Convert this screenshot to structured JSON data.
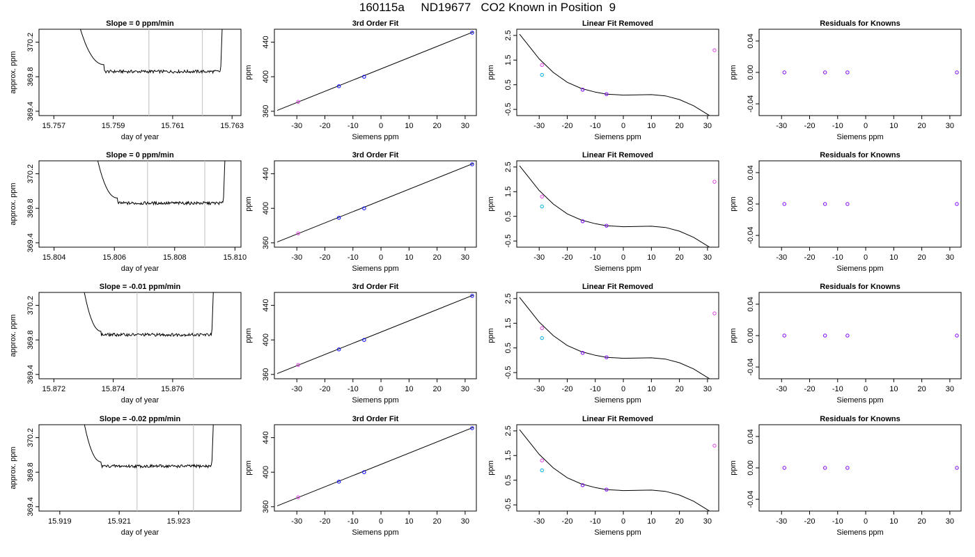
{
  "page": {
    "title": "160115a     ND19677   CO2 Known in Position  9"
  },
  "colors": {
    "trace": "#000000",
    "window_line": "#c8c8c8",
    "point_blue": "#0000ff",
    "point_magenta": "#e040e0",
    "point_cyan": "#00b0e0",
    "point_purple": "#8000ff"
  },
  "chart_data": [
    {
      "type": "line",
      "panel": "trace",
      "row": 0,
      "title": "Slope =  0  ppm/min",
      "xlabel": "day of year",
      "ylabel": "approx. ppm",
      "xlim": [
        15.7565,
        15.7633
      ],
      "ylim": [
        369.35,
        370.35
      ],
      "xticks": [
        15.757,
        15.759,
        15.761,
        15.763
      ],
      "xtick_labels": [
        "15.757",
        "15.759",
        "15.761",
        "15.763"
      ],
      "yticks": [
        369.4,
        369.8,
        370.2
      ],
      "ytick_labels": [
        "369.4",
        "369.8",
        "370.2"
      ],
      "window": [
        15.7602,
        15.762
      ],
      "trace": {
        "start": 15.7577,
        "drop_end": 15.7587,
        "level_start": 369.94,
        "level": 369.86,
        "end": 15.7626
      }
    },
    {
      "type": "line",
      "panel": "fit",
      "row": 0,
      "title": "3rd Order Fit",
      "xlabel": "Siemens ppm",
      "ylabel": "ppm",
      "xlim": [
        -38,
        34
      ],
      "ylim": [
        355,
        455
      ],
      "xticks": [
        -30,
        -20,
        -10,
        0,
        10,
        20,
        30
      ],
      "xtick_labels": [
        "-30",
        "-20",
        "-10",
        "0",
        "10",
        "20",
        "30"
      ],
      "yticks": [
        360,
        400,
        440
      ],
      "ytick_labels": [
        "360",
        "400",
        "440"
      ],
      "line": {
        "x": [
          -37,
          33
        ],
        "y": [
          361,
          452
        ]
      },
      "points": [
        {
          "x": -29.5,
          "y": 371,
          "color": "point_magenta"
        },
        {
          "x": -15,
          "y": 389,
          "color": "point_blue"
        },
        {
          "x": -6,
          "y": 400,
          "color": "point_blue"
        },
        {
          "x": 32.5,
          "y": 451,
          "color": "point_blue"
        }
      ]
    },
    {
      "type": "line",
      "panel": "linear_removed",
      "row": 0,
      "title": "Linear Fit Removed",
      "xlabel": "Siemens ppm",
      "ylabel": "ppm",
      "xlim": [
        -38,
        34
      ],
      "ylim": [
        -0.75,
        2.75
      ],
      "xticks": [
        -30,
        -20,
        -10,
        0,
        10,
        20,
        30
      ],
      "xtick_labels": [
        "-30",
        "-20",
        "-10",
        "0",
        "10",
        "20",
        "30"
      ],
      "yticks": [
        -0.5,
        0.5,
        1.5,
        2.5
      ],
      "ytick_labels": [
        "-0.5",
        "0.5",
        "1.5",
        "2.5"
      ],
      "curve": {
        "x": [
          -37,
          -30,
          -25,
          -20,
          -15,
          -10,
          -6,
          0,
          5,
          10,
          15,
          20,
          25,
          30,
          32.5
        ],
        "y": [
          2.55,
          1.55,
          1.0,
          0.6,
          0.35,
          0.2,
          0.12,
          0.08,
          0.09,
          0.1,
          0.05,
          -0.1,
          -0.35,
          -0.7,
          -0.88
        ]
      },
      "points": [
        {
          "x": -29,
          "y": 1.3,
          "color": "point_magenta"
        },
        {
          "x": -29,
          "y": 0.9,
          "color": "point_cyan"
        },
        {
          "x": -14.5,
          "y": 0.3,
          "color": "point_purple"
        },
        {
          "x": -6,
          "y": 0.12,
          "color": "point_purple"
        },
        {
          "x": 32.5,
          "y": 1.9,
          "color": "point_magenta"
        },
        {
          "x": 32.5,
          "y": -0.85,
          "color": "point_blue"
        }
      ]
    },
    {
      "type": "scatter",
      "panel": "residuals",
      "row": 0,
      "title": "Residuals for Knowns",
      "xlabel": "Siemens ppm",
      "ylabel": "ppm",
      "xlim": [
        -38,
        34
      ],
      "ylim": [
        -0.055,
        0.055
      ],
      "xticks": [
        -30,
        -20,
        -10,
        0,
        10,
        20,
        30
      ],
      "xtick_labels": [
        "-30",
        "-20",
        "-10",
        "0",
        "10",
        "20",
        "30"
      ],
      "yticks": [
        -0.04,
        0.0,
        0.04
      ],
      "ytick_labels": [
        "-0.04",
        "0.00",
        "0.04"
      ],
      "points": [
        {
          "x": -29,
          "y": 0,
          "color": "point_purple"
        },
        {
          "x": -14.5,
          "y": 0,
          "color": "point_purple"
        },
        {
          "x": -6.5,
          "y": 0,
          "color": "point_purple"
        },
        {
          "x": 32.5,
          "y": 0,
          "color": "point_purple"
        }
      ]
    },
    {
      "type": "line",
      "panel": "trace",
      "row": 1,
      "title": "Slope =  0  ppm/min",
      "xlabel": "day of year",
      "ylabel": "approx. ppm",
      "xlim": [
        15.8035,
        15.8102
      ],
      "ylim": [
        369.35,
        370.35
      ],
      "xticks": [
        15.804,
        15.806,
        15.808,
        15.81
      ],
      "xtick_labels": [
        "15.804",
        "15.806",
        "15.808",
        "15.810"
      ],
      "yticks": [
        369.4,
        369.8,
        370.2
      ],
      "ytick_labels": [
        "369.4",
        "369.8",
        "370.2"
      ],
      "window": [
        15.8071,
        15.809
      ],
      "trace": {
        "start": 15.8053,
        "drop_end": 15.8061,
        "level_start": 369.92,
        "level": 369.86,
        "end": 15.8096
      }
    },
    {
      "type": "line",
      "panel": "fit",
      "row": 1,
      "title": "3rd Order Fit",
      "xlabel": "Siemens ppm",
      "ylabel": "ppm",
      "xlim": [
        -38,
        34
      ],
      "ylim": [
        355,
        455
      ],
      "xticks": [
        -30,
        -20,
        -10,
        0,
        10,
        20,
        30
      ],
      "xtick_labels": [
        "-30",
        "-20",
        "-10",
        "0",
        "10",
        "20",
        "30"
      ],
      "yticks": [
        360,
        400,
        440
      ],
      "ytick_labels": [
        "360",
        "400",
        "440"
      ],
      "line": {
        "x": [
          -37,
          33
        ],
        "y": [
          361,
          452
        ]
      },
      "points": [
        {
          "x": -29.5,
          "y": 371,
          "color": "point_magenta"
        },
        {
          "x": -15,
          "y": 389,
          "color": "point_blue"
        },
        {
          "x": -6,
          "y": 400,
          "color": "point_blue"
        },
        {
          "x": 32.5,
          "y": 451,
          "color": "point_blue"
        }
      ]
    },
    {
      "type": "line",
      "panel": "linear_removed",
      "row": 1,
      "title": "Linear Fit Removed",
      "xlabel": "Siemens ppm",
      "ylabel": "ppm",
      "xlim": [
        -38,
        34
      ],
      "ylim": [
        -0.75,
        2.75
      ],
      "xticks": [
        -30,
        -20,
        -10,
        0,
        10,
        20,
        30
      ],
      "xtick_labels": [
        "-30",
        "-20",
        "-10",
        "0",
        "10",
        "20",
        "30"
      ],
      "yticks": [
        -0.5,
        0.5,
        1.5,
        2.5
      ],
      "ytick_labels": [
        "-0.5",
        "0.5",
        "1.5",
        "2.5"
      ],
      "curve": {
        "x": [
          -37,
          -30,
          -25,
          -20,
          -15,
          -10,
          -6,
          0,
          5,
          10,
          15,
          20,
          25,
          30,
          32.5
        ],
        "y": [
          2.55,
          1.55,
          1.0,
          0.6,
          0.35,
          0.2,
          0.12,
          0.08,
          0.09,
          0.1,
          0.05,
          -0.1,
          -0.35,
          -0.7,
          -0.88
        ]
      },
      "points": [
        {
          "x": -29,
          "y": 1.3,
          "color": "point_magenta"
        },
        {
          "x": -29,
          "y": 0.9,
          "color": "point_cyan"
        },
        {
          "x": -14.5,
          "y": 0.3,
          "color": "point_purple"
        },
        {
          "x": -6,
          "y": 0.12,
          "color": "point_purple"
        },
        {
          "x": 32.5,
          "y": 1.9,
          "color": "point_magenta"
        },
        {
          "x": 32.5,
          "y": -0.85,
          "color": "point_blue"
        }
      ]
    },
    {
      "type": "scatter",
      "panel": "residuals",
      "row": 1,
      "title": "Residuals for Knowns",
      "xlabel": "Siemens ppm",
      "ylabel": "ppm",
      "xlim": [
        -38,
        34
      ],
      "ylim": [
        -0.055,
        0.055
      ],
      "xticks": [
        -30,
        -20,
        -10,
        0,
        10,
        20,
        30
      ],
      "xtick_labels": [
        "-30",
        "-20",
        "-10",
        "0",
        "10",
        "20",
        "30"
      ],
      "yticks": [
        -0.04,
        0.0,
        0.04
      ],
      "ytick_labels": [
        "-0.04",
        "0.00",
        "0.04"
      ],
      "points": [
        {
          "x": -29,
          "y": 0,
          "color": "point_purple"
        },
        {
          "x": -14.5,
          "y": 0,
          "color": "point_purple"
        },
        {
          "x": -6.5,
          "y": 0,
          "color": "point_purple"
        },
        {
          "x": 32.5,
          "y": 0,
          "color": "point_purple"
        }
      ]
    },
    {
      "type": "line",
      "panel": "trace",
      "row": 2,
      "title": "Slope =  -0.01  ppm/min",
      "xlabel": "day of year",
      "ylabel": "approx. ppm",
      "xlim": [
        15.8715,
        15.8783
      ],
      "ylim": [
        369.35,
        370.35
      ],
      "xticks": [
        15.872,
        15.874,
        15.876
      ],
      "xtick_labels": [
        "15.872",
        "15.874",
        "15.876"
      ],
      "yticks": [
        369.4,
        369.8,
        370.2
      ],
      "ytick_labels": [
        "369.4",
        "369.8",
        "370.2"
      ],
      "window": [
        15.8748,
        15.8767
      ],
      "trace": {
        "start": 15.8729,
        "drop_end": 15.8736,
        "level_start": 369.9,
        "level": 369.86,
        "end": 15.8773
      }
    },
    {
      "type": "line",
      "panel": "fit",
      "row": 2,
      "title": "3rd Order Fit",
      "xlabel": "Siemens ppm",
      "ylabel": "ppm",
      "xlim": [
        -38,
        34
      ],
      "ylim": [
        355,
        455
      ],
      "xticks": [
        -30,
        -20,
        -10,
        0,
        10,
        20,
        30
      ],
      "xtick_labels": [
        "-30",
        "-20",
        "-10",
        "0",
        "10",
        "20",
        "30"
      ],
      "yticks": [
        360,
        400,
        440
      ],
      "ytick_labels": [
        "360",
        "400",
        "440"
      ],
      "line": {
        "x": [
          -37,
          33
        ],
        "y": [
          361,
          452
        ]
      },
      "points": [
        {
          "x": -29.5,
          "y": 371,
          "color": "point_magenta"
        },
        {
          "x": -15,
          "y": 389,
          "color": "point_blue"
        },
        {
          "x": -6,
          "y": 400,
          "color": "point_blue"
        },
        {
          "x": 32.5,
          "y": 451,
          "color": "point_blue"
        }
      ]
    },
    {
      "type": "line",
      "panel": "linear_removed",
      "row": 2,
      "title": "Linear Fit Removed",
      "xlabel": "Siemens ppm",
      "ylabel": "ppm",
      "xlim": [
        -38,
        34
      ],
      "ylim": [
        -0.75,
        2.75
      ],
      "xticks": [
        -30,
        -20,
        -10,
        0,
        10,
        20,
        30
      ],
      "xtick_labels": [
        "-30",
        "-20",
        "-10",
        "0",
        "10",
        "20",
        "30"
      ],
      "yticks": [
        -0.5,
        0.5,
        1.5,
        2.5
      ],
      "ytick_labels": [
        "-0.5",
        "0.5",
        "1.5",
        "2.5"
      ],
      "curve": {
        "x": [
          -37,
          -30,
          -25,
          -20,
          -15,
          -10,
          -6,
          0,
          5,
          10,
          15,
          20,
          25,
          30,
          32.5
        ],
        "y": [
          2.55,
          1.55,
          1.0,
          0.6,
          0.35,
          0.2,
          0.12,
          0.08,
          0.09,
          0.1,
          0.05,
          -0.1,
          -0.35,
          -0.7,
          -0.88
        ]
      },
      "points": [
        {
          "x": -29,
          "y": 1.3,
          "color": "point_magenta"
        },
        {
          "x": -29,
          "y": 0.9,
          "color": "point_cyan"
        },
        {
          "x": -14.5,
          "y": 0.3,
          "color": "point_purple"
        },
        {
          "x": -6,
          "y": 0.12,
          "color": "point_purple"
        },
        {
          "x": 32.5,
          "y": 1.9,
          "color": "point_magenta"
        },
        {
          "x": 32.5,
          "y": -0.85,
          "color": "point_blue"
        }
      ]
    },
    {
      "type": "scatter",
      "panel": "residuals",
      "row": 2,
      "title": "Residuals for Knowns",
      "xlabel": "Siemens ppm",
      "ylabel": "ppm",
      "xlim": [
        -38,
        34
      ],
      "ylim": [
        -0.055,
        0.055
      ],
      "xticks": [
        -30,
        -20,
        -10,
        0,
        10,
        20,
        30
      ],
      "xtick_labels": [
        "-30",
        "-20",
        "-10",
        "0",
        "10",
        "20",
        "30"
      ],
      "yticks": [
        -0.04,
        0.0,
        0.04
      ],
      "ytick_labels": [
        "-0.04",
        "0.00",
        "0.04"
      ],
      "points": [
        {
          "x": -29,
          "y": 0,
          "color": "point_purple"
        },
        {
          "x": -14.5,
          "y": 0,
          "color": "point_purple"
        },
        {
          "x": -6.5,
          "y": 0,
          "color": "point_purple"
        },
        {
          "x": 32.5,
          "y": 0,
          "color": "point_purple"
        }
      ]
    },
    {
      "type": "line",
      "panel": "trace",
      "row": 3,
      "title": "Slope =  -0.02  ppm/min",
      "xlabel": "day of year",
      "ylabel": "approx. ppm",
      "xlim": [
        15.9183,
        15.9251
      ],
      "ylim": [
        369.35,
        370.35
      ],
      "xticks": [
        15.919,
        15.921,
        15.923
      ],
      "xtick_labels": [
        "15.919",
        "15.921",
        "15.923"
      ],
      "yticks": [
        369.4,
        369.8,
        370.2
      ],
      "ytick_labels": [
        "369.4",
        "369.8",
        "370.2"
      ],
      "window": [
        15.9216,
        15.9235
      ],
      "trace": {
        "start": 15.9197,
        "drop_end": 15.9204,
        "level_start": 369.92,
        "level": 369.87,
        "end": 15.9241
      }
    },
    {
      "type": "line",
      "panel": "fit",
      "row": 3,
      "title": "3rd Order Fit",
      "xlabel": "Siemens ppm",
      "ylabel": "ppm",
      "xlim": [
        -38,
        34
      ],
      "ylim": [
        355,
        455
      ],
      "xticks": [
        -30,
        -20,
        -10,
        0,
        10,
        20,
        30
      ],
      "xtick_labels": [
        "-30",
        "-20",
        "-10",
        "0",
        "10",
        "20",
        "30"
      ],
      "yticks": [
        360,
        400,
        440
      ],
      "ytick_labels": [
        "360",
        "400",
        "440"
      ],
      "line": {
        "x": [
          -37,
          33
        ],
        "y": [
          361,
          452
        ]
      },
      "points": [
        {
          "x": -29.5,
          "y": 371,
          "color": "point_magenta"
        },
        {
          "x": -15,
          "y": 389,
          "color": "point_blue"
        },
        {
          "x": -6,
          "y": 400,
          "color": "point_blue"
        },
        {
          "x": 32.5,
          "y": 451,
          "color": "point_blue"
        }
      ]
    },
    {
      "type": "line",
      "panel": "linear_removed",
      "row": 3,
      "title": "Linear Fit Removed",
      "xlabel": "Siemens ppm",
      "ylabel": "ppm",
      "xlim": [
        -38,
        34
      ],
      "ylim": [
        -0.75,
        2.75
      ],
      "xticks": [
        -30,
        -20,
        -10,
        0,
        10,
        20,
        30
      ],
      "xtick_labels": [
        "-30",
        "-20",
        "-10",
        "0",
        "10",
        "20",
        "30"
      ],
      "yticks": [
        -0.5,
        0.5,
        1.5,
        2.5
      ],
      "ytick_labels": [
        "-0.5",
        "0.5",
        "1.5",
        "2.5"
      ],
      "curve": {
        "x": [
          -37,
          -30,
          -25,
          -20,
          -15,
          -10,
          -6,
          0,
          5,
          10,
          15,
          20,
          25,
          30,
          32.5
        ],
        "y": [
          2.55,
          1.55,
          1.0,
          0.6,
          0.35,
          0.2,
          0.12,
          0.08,
          0.09,
          0.1,
          0.05,
          -0.1,
          -0.35,
          -0.7,
          -0.88
        ]
      },
      "points": [
        {
          "x": -29,
          "y": 1.3,
          "color": "point_magenta"
        },
        {
          "x": -29,
          "y": 0.9,
          "color": "point_cyan"
        },
        {
          "x": -14.5,
          "y": 0.3,
          "color": "point_purple"
        },
        {
          "x": -6,
          "y": 0.12,
          "color": "point_purple"
        },
        {
          "x": 32.5,
          "y": 1.9,
          "color": "point_magenta"
        },
        {
          "x": 32.5,
          "y": -0.85,
          "color": "point_blue"
        }
      ]
    },
    {
      "type": "scatter",
      "panel": "residuals",
      "row": 3,
      "title": "Residuals for Knowns",
      "xlabel": "Siemens ppm",
      "ylabel": "ppm",
      "xlim": [
        -38,
        34
      ],
      "ylim": [
        -0.055,
        0.055
      ],
      "xticks": [
        -30,
        -20,
        -10,
        0,
        10,
        20,
        30
      ],
      "xtick_labels": [
        "-30",
        "-20",
        "-10",
        "0",
        "10",
        "20",
        "30"
      ],
      "yticks": [
        -0.04,
        0.0,
        0.04
      ],
      "ytick_labels": [
        "-0.04",
        "0.00",
        "0.04"
      ],
      "points": [
        {
          "x": -29,
          "y": 0,
          "color": "point_purple"
        },
        {
          "x": -14.5,
          "y": 0,
          "color": "point_purple"
        },
        {
          "x": -6.5,
          "y": 0,
          "color": "point_purple"
        },
        {
          "x": 32.5,
          "y": 0,
          "color": "point_purple"
        }
      ]
    }
  ]
}
